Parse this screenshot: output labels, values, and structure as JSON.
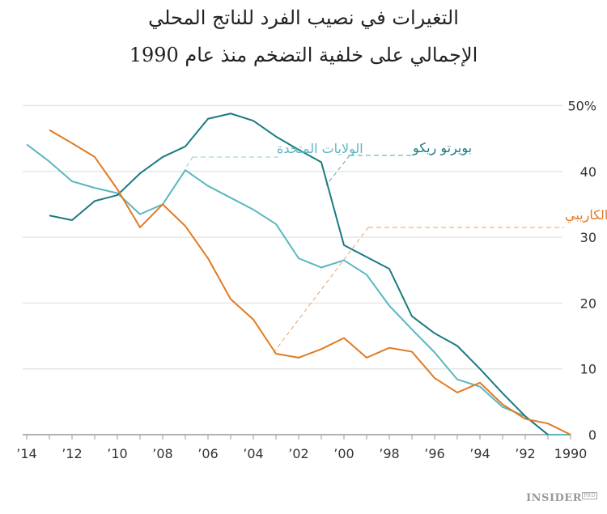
{
  "title_line1": "التغيرات في نصيب الفرد للناتج المحلي",
  "title_line2": "الإجمالي على خلفية التضخم منذ عام 1990",
  "logo": {
    "text": "INSIDER",
    "badge": "PRO"
  },
  "chart_data": {
    "type": "line",
    "title": "التغيرات في نصيب الفرد للناتج المحلي الإجمالي على خلفية التضخم منذ عام 1990",
    "xlabel": "",
    "ylabel": "",
    "xlim": [
      2014,
      1990
    ],
    "x_reversed": true,
    "ylim": [
      0,
      50
    ],
    "grid": true,
    "x_ticks": [
      2014,
      2012,
      2010,
      2008,
      2006,
      2004,
      2002,
      2000,
      1998,
      1996,
      1994,
      1992,
      1990
    ],
    "x_tick_labels": [
      "’14",
      "’12",
      "’10",
      "’08",
      "’06",
      "’04",
      "’02",
      "’00",
      "’98",
      "’96",
      "’94",
      "’92",
      "1990"
    ],
    "y_ticks": [
      0,
      10,
      20,
      30,
      40,
      50
    ],
    "y_tick_labels": [
      "0",
      "10",
      "20",
      "30",
      "40",
      "50%"
    ],
    "series": [
      {
        "name": "الولايات المتحدة",
        "color": "#5ab7bf",
        "x": [
          2014,
          2013,
          2012,
          2011,
          2010,
          2009,
          2008,
          2007,
          2006,
          2005,
          2004,
          2003,
          2002,
          2001,
          2000,
          1999,
          1998,
          1997,
          1996,
          1995,
          1994,
          1993,
          1992,
          1991,
          1990
        ],
        "values": [
          44.1,
          41.5,
          38.5,
          37.5,
          36.7,
          33.5,
          35,
          40.2,
          37.8,
          36,
          34.2,
          32,
          26.8,
          25.4,
          26.5,
          24.3,
          19.6,
          16,
          12.5,
          8.4,
          7.3,
          4.2,
          2.8,
          0,
          0
        ]
      },
      {
        "name": "بويرتو ريكو",
        "color": "#1b7a80",
        "x": [
          2013,
          2012,
          2011,
          2010,
          2009,
          2008,
          2007,
          2006,
          2005,
          2004,
          2003,
          2002,
          2001,
          2000,
          1999,
          1998,
          1997,
          1996,
          1995,
          1994,
          1993,
          1992,
          1991
        ],
        "values": [
          33.3,
          32.6,
          35.5,
          36.4,
          39.7,
          42.2,
          43.8,
          48,
          48.8,
          47.7,
          45.3,
          43.3,
          41.4,
          28.8,
          27,
          25.2,
          18,
          15.4,
          13.5,
          10,
          6.3,
          2.8,
          0
        ]
      },
      {
        "name": "أمريكا اللاتينية ومنطقة البحر الكاريبي",
        "color": "#e07b24",
        "x": [
          2013,
          2012,
          2011,
          2010,
          2009,
          2008,
          2007,
          2006,
          2005,
          2004,
          2003,
          2002,
          2001,
          2000,
          1999,
          1998,
          1997,
          1996,
          1995,
          1994,
          1993,
          1992,
          1991,
          1990
        ],
        "values": [
          46.3,
          44.3,
          42.2,
          37.3,
          31.5,
          35,
          31.7,
          26.8,
          20.6,
          17.5,
          12.3,
          11.7,
          13,
          14.7,
          11.7,
          13.2,
          12.6,
          8.6,
          6.4,
          7.9,
          4.6,
          2.4,
          1.7,
          0
        ]
      }
    ]
  }
}
